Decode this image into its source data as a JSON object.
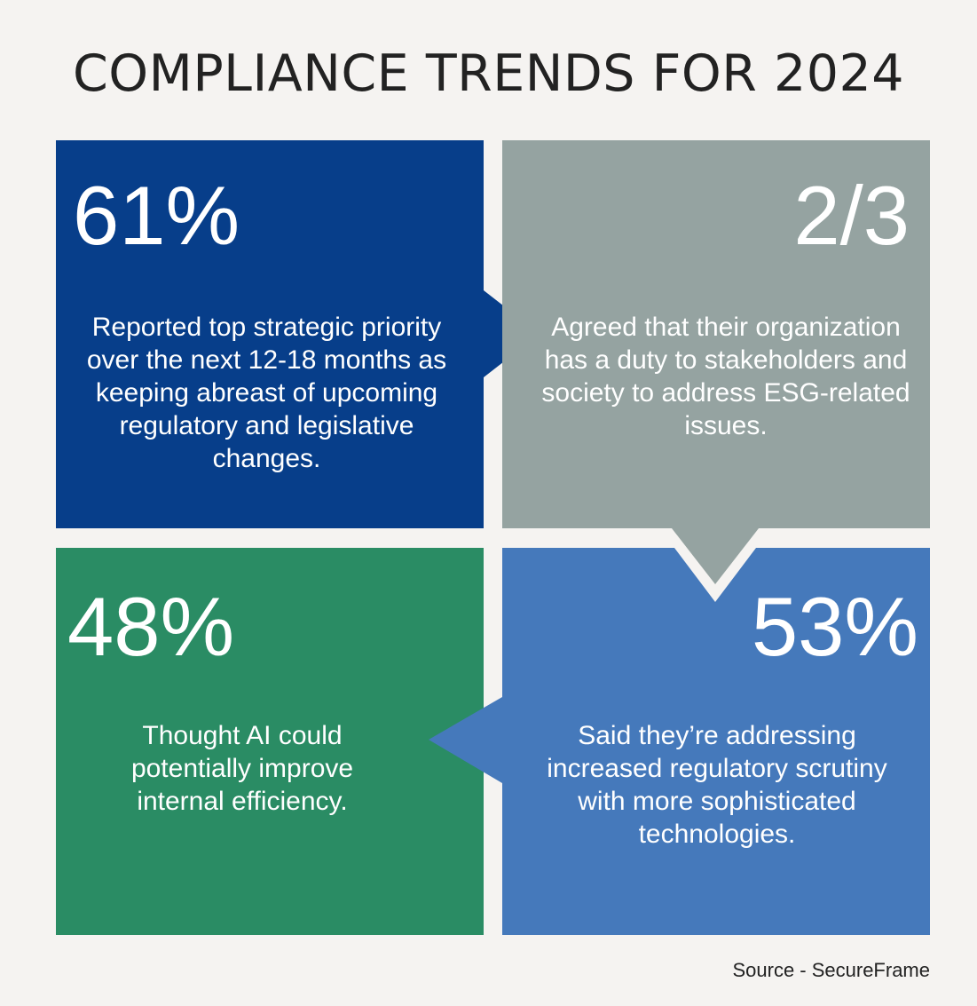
{
  "title": "COMPLIANCE TRENDS FOR 2024",
  "colors": {
    "background": "#f5f3f1",
    "navy": "#073e8a",
    "gray": "#95a3a1",
    "green": "#2a8c64",
    "blue": "#4579bb",
    "title_text": "#222222"
  },
  "stats": [
    {
      "value": "61%",
      "description": "Reported top strategic priority over the next 12-18 months as keeping abreast of upcoming regulatory and legislative changes."
    },
    {
      "value": "2/3",
      "description": "Agreed that their organization has a duty to stakeholders and society to address ESG-related issues."
    },
    {
      "value": "48%",
      "description": "Thought AI could potentially improve internal efficiency."
    },
    {
      "value": "53%",
      "description": "Said they’re addressing increased regulatory scrutiny with more sophisticated technologies."
    }
  ],
  "source": "Source - SecureFrame"
}
